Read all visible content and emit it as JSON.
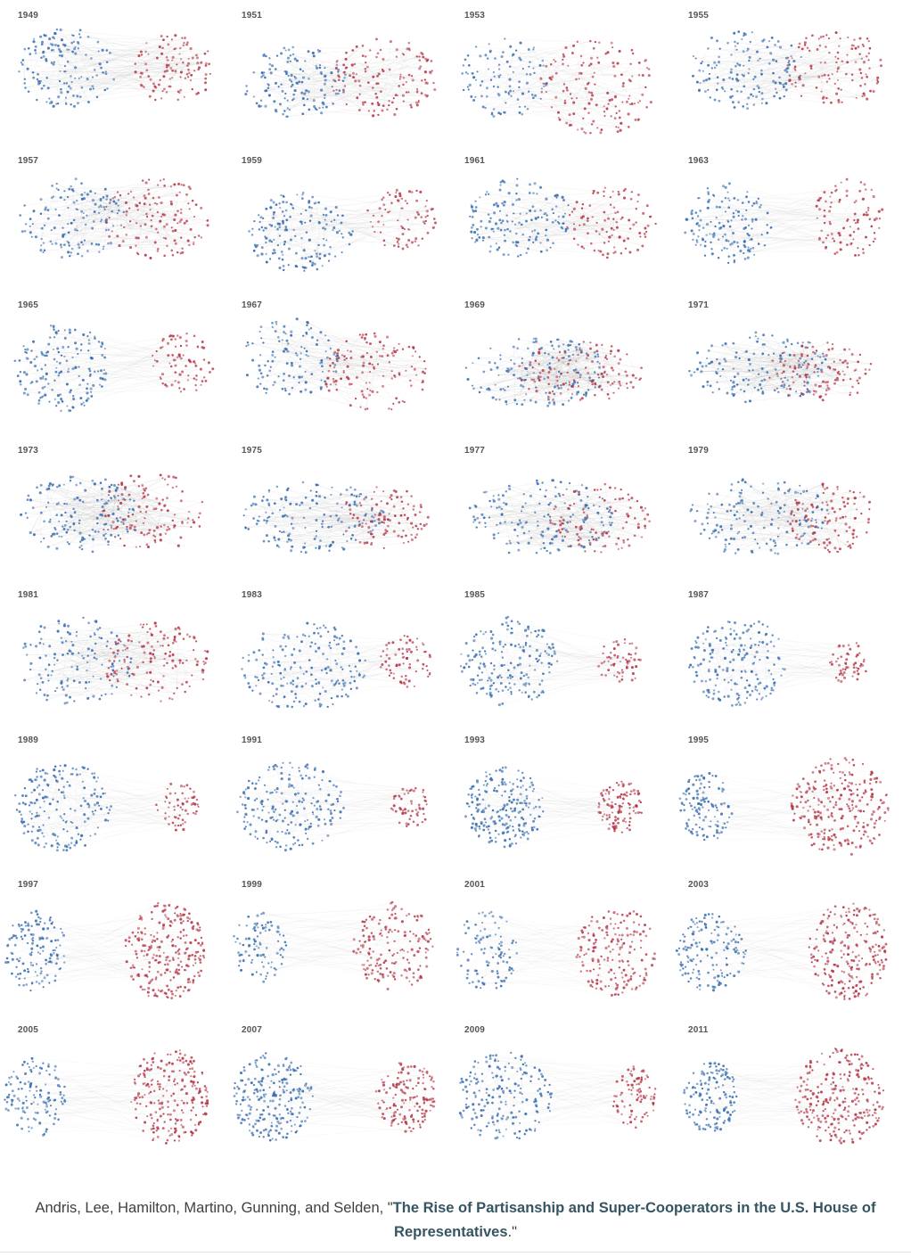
{
  "figure": {
    "colors": {
      "democrat": "#3a6fb0",
      "republican": "#b53a4a",
      "edge": "#888888"
    },
    "panels": [
      {
        "year": "1949"
      },
      {
        "year": "1951"
      },
      {
        "year": "1953"
      },
      {
        "year": "1955"
      },
      {
        "year": "1957"
      },
      {
        "year": "1959"
      },
      {
        "year": "1961"
      },
      {
        "year": "1963"
      },
      {
        "year": "1965"
      },
      {
        "year": "1967"
      },
      {
        "year": "1969"
      },
      {
        "year": "1971"
      },
      {
        "year": "1973"
      },
      {
        "year": "1975"
      },
      {
        "year": "1977"
      },
      {
        "year": "1979"
      },
      {
        "year": "1981"
      },
      {
        "year": "1983"
      },
      {
        "year": "1985"
      },
      {
        "year": "1987"
      },
      {
        "year": "1989"
      },
      {
        "year": "1991"
      },
      {
        "year": "1993"
      },
      {
        "year": "1995"
      },
      {
        "year": "1997"
      },
      {
        "year": "1999"
      },
      {
        "year": "2001"
      },
      {
        "year": "2003"
      },
      {
        "year": "2005"
      },
      {
        "year": "2007"
      },
      {
        "year": "2009"
      },
      {
        "year": "2011"
      }
    ]
  },
  "caption": {
    "prefix": "Andris, Lee, Hamilton, Martino, Gunning, and Selden, \"",
    "link_text": "The Rise of Partisanship and Super-Cooperators in the U.S. House of Representatives",
    "suffix": ".\""
  }
}
